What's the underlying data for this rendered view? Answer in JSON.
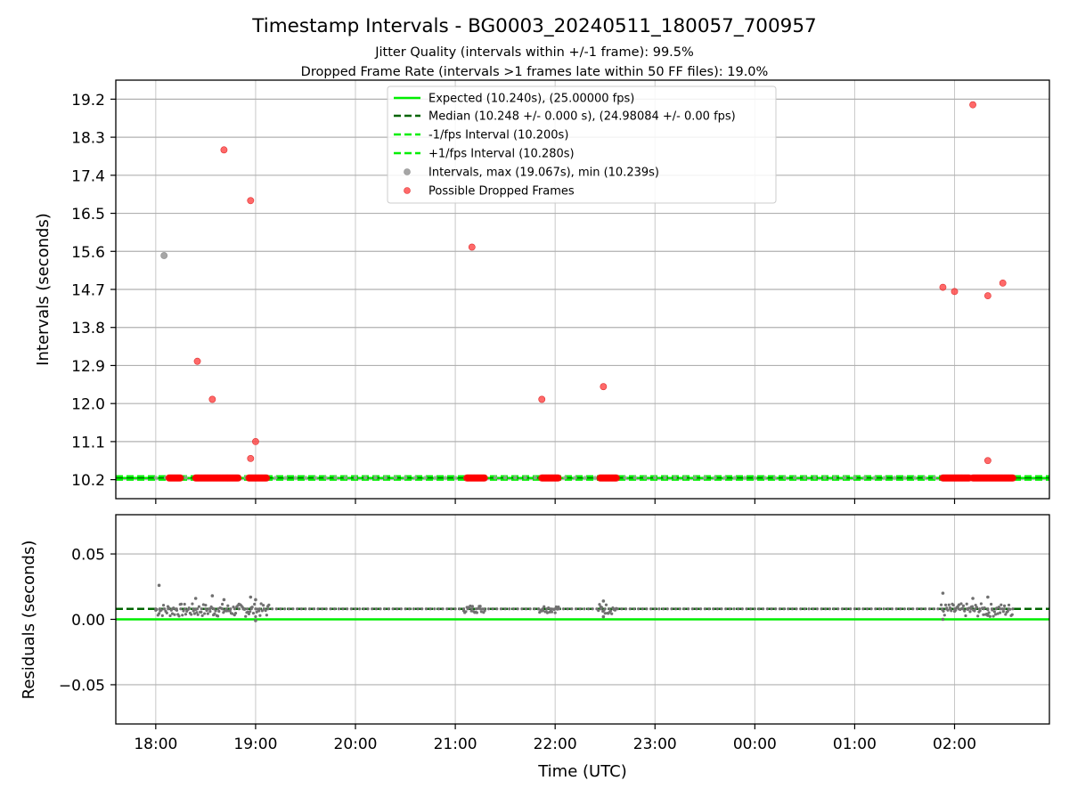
{
  "figure": {
    "title": "Timestamp Intervals - BG0003_20240511_180057_700957",
    "subtitle_1": "Jitter Quality (intervals within +/-1 frame): 99.5%",
    "subtitle_2": "Dropped Frame Rate (intervals >1 frames late within 50 FF files): 19.0%"
  },
  "colors": {
    "expected": "#00ee00",
    "median": "#006400",
    "interval_points": "#a6a6a6",
    "dropped_points": "#ff4444",
    "residual_points": "#707070",
    "grid": "#b0b0b0"
  },
  "chart_data": [
    {
      "type": "scatter",
      "ylabel": "Intervals (seconds)",
      "ylim": [
        9.75,
        19.65
      ],
      "yticks": [
        "10.2",
        "11.1",
        "12.0",
        "12.9",
        "13.8",
        "14.7",
        "15.6",
        "16.5",
        "17.4",
        "18.3",
        "19.2"
      ],
      "xlim": [
        "2024-05-11 17:36",
        "2024-05-12 02:57"
      ],
      "xticks": [
        "18:00",
        "19:00",
        "20:00",
        "21:00",
        "22:00",
        "23:00",
        "00:00",
        "01:00",
        "02:00"
      ],
      "grid": true,
      "legend_placement": "top-center",
      "legend": [
        "Expected (10.240s), (25.00000 fps)",
        "Median (10.248 +/- 0.000 s), (24.98084 +/- 0.00 fps)",
        "-1/fps Interval (10.200s)",
        "+1/fps Interval (10.280s)",
        "Intervals, max (19.067s), min (10.239s)",
        "Possible Dropped Frames"
      ],
      "reference_lines": [
        {
          "name": "Expected",
          "y": 10.24,
          "style": "solid"
        },
        {
          "name": "Median",
          "y": 10.248,
          "style": "dashed"
        },
        {
          "name": "-1/fps Interval",
          "y": 10.2,
          "style": "dashed"
        },
        {
          "name": "+1/fps Interval",
          "y": 10.28,
          "style": "dashed"
        }
      ],
      "interval_outliers": [
        {
          "x": "2024-05-11 18:05",
          "y": 15.5
        }
      ],
      "dropped_frames": [
        {
          "x": "2024-05-11 18:25",
          "y": 13.0
        },
        {
          "x": "2024-05-11 18:34",
          "y": 12.1
        },
        {
          "x": "2024-05-11 18:41",
          "y": 18.0
        },
        {
          "x": "2024-05-11 18:57",
          "y": 16.8
        },
        {
          "x": "2024-05-11 18:57",
          "y": 10.7
        },
        {
          "x": "2024-05-11 19:00",
          "y": 11.1
        },
        {
          "x": "2024-05-11 21:10",
          "y": 15.7
        },
        {
          "x": "2024-05-11 21:52",
          "y": 12.1
        },
        {
          "x": "2024-05-11 22:29",
          "y": 12.4
        },
        {
          "x": "2024-05-12 01:53",
          "y": 14.75
        },
        {
          "x": "2024-05-12 02:00",
          "y": 14.65
        },
        {
          "x": "2024-05-12 02:11",
          "y": 19.067
        },
        {
          "x": "2024-05-12 02:20",
          "y": 14.55
        },
        {
          "x": "2024-05-12 02:20",
          "y": 10.65
        },
        {
          "x": "2024-05-12 02:29",
          "y": 14.85
        }
      ],
      "dropped_frame_clusters": [
        {
          "start": "2024-05-11 18:08",
          "end": "2024-05-11 18:15",
          "y": 10.24
        },
        {
          "start": "2024-05-11 18:24",
          "end": "2024-05-11 18:50",
          "y": 10.24
        },
        {
          "start": "2024-05-11 18:56",
          "end": "2024-05-11 19:07",
          "y": 10.24
        },
        {
          "start": "2024-05-11 21:07",
          "end": "2024-05-11 21:18",
          "y": 10.24
        },
        {
          "start": "2024-05-11 21:52",
          "end": "2024-05-11 22:02",
          "y": 10.24
        },
        {
          "start": "2024-05-11 22:27",
          "end": "2024-05-11 22:37",
          "y": 10.24
        },
        {
          "start": "2024-05-12 01:53",
          "end": "2024-05-12 02:09",
          "y": 10.24
        },
        {
          "start": "2024-05-12 02:11",
          "end": "2024-05-12 02:35",
          "y": 10.24
        }
      ],
      "normal_interval_range": {
        "start": "2024-05-11 18:00",
        "end": "2024-05-12 02:35",
        "y": 10.248
      }
    },
    {
      "type": "scatter",
      "xlabel": "Time (UTC)",
      "ylabel": "Residuals (seconds)",
      "ylim": [
        -0.08,
        0.08
      ],
      "yticks": [
        "−0.05",
        "0.00",
        "0.05"
      ],
      "xlim": [
        "2024-05-11 17:36",
        "2024-05-12 02:57"
      ],
      "xticks": [
        "18:00",
        "19:00",
        "20:00",
        "21:00",
        "22:00",
        "23:00",
        "00:00",
        "01:00",
        "02:00"
      ],
      "grid": true,
      "reference_lines": [
        {
          "name": "Expected",
          "y": 0.0,
          "style": "solid"
        },
        {
          "name": "Median",
          "y": 0.008,
          "style": "dashed"
        }
      ],
      "residual_outliers": [
        {
          "x": "2024-05-11 18:02",
          "y": 0.026
        },
        {
          "x": "2024-05-11 18:24",
          "y": 0.016
        },
        {
          "x": "2024-05-11 18:34",
          "y": 0.018
        },
        {
          "x": "2024-05-11 18:41",
          "y": 0.015
        },
        {
          "x": "2024-05-11 18:57",
          "y": 0.017
        },
        {
          "x": "2024-05-11 19:00",
          "y": 0.015
        },
        {
          "x": "2024-05-11 19:00",
          "y": -0.001
        },
        {
          "x": "2024-05-11 22:29",
          "y": 0.014
        },
        {
          "x": "2024-05-11 22:29",
          "y": 0.002
        },
        {
          "x": "2024-05-12 01:53",
          "y": 0.02
        },
        {
          "x": "2024-05-12 01:53",
          "y": 0.0
        },
        {
          "x": "2024-05-12 02:11",
          "y": 0.016
        },
        {
          "x": "2024-05-12 02:20",
          "y": 0.017
        },
        {
          "x": "2024-05-12 02:20",
          "y": 0.003
        }
      ],
      "residual_clusters": [
        {
          "start": "2024-05-11 18:00",
          "end": "2024-05-11 19:08",
          "y_min": 0.002,
          "y_max": 0.012
        },
        {
          "start": "2024-05-11 21:05",
          "end": "2024-05-11 21:18",
          "y_min": 0.005,
          "y_max": 0.011
        },
        {
          "start": "2024-05-11 21:50",
          "end": "2024-05-11 22:02",
          "y_min": 0.005,
          "y_max": 0.011
        },
        {
          "start": "2024-05-11 22:26",
          "end": "2024-05-11 22:37",
          "y_min": 0.004,
          "y_max": 0.012
        },
        {
          "start": "2024-05-12 01:52",
          "end": "2024-05-12 02:35",
          "y_min": 0.002,
          "y_max": 0.012
        }
      ],
      "residual_baseline": {
        "start": "2024-05-11 18:00",
        "end": "2024-05-12 02:35",
        "y": 0.008
      }
    }
  ]
}
